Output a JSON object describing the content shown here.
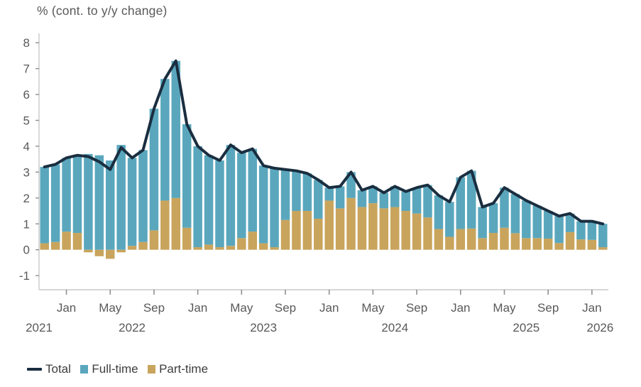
{
  "chart": {
    "title": "% (cont. to y/y change)",
    "colors": {
      "full_time": "#5AA7BD",
      "part_time": "#C9A45C",
      "total_line": "#1A2E40",
      "axis": "#C9C9C9",
      "tick": "#8f8f8f",
      "label_text": "#595959",
      "legend_text": "#3d3d3d",
      "background": "#ffffff"
    },
    "legend": {
      "items": [
        {
          "label": "Total",
          "swatch": "line",
          "name": "legend-total"
        },
        {
          "label": "Full-time",
          "swatch": "box",
          "color_key": "full_time",
          "name": "legend-full-time"
        },
        {
          "label": "Part-time",
          "swatch": "box",
          "color_key": "part_time",
          "name": "legend-part-time"
        }
      ]
    },
    "y_axis": {
      "tick_labels": [
        "8",
        "7",
        "6",
        "5",
        "4",
        "3",
        "2",
        "1",
        "0",
        "-1"
      ],
      "tick_values": [
        8,
        7,
        6,
        5,
        4,
        3,
        2,
        1,
        0,
        -1
      ]
    },
    "x_axis": {
      "month_ticks": [
        {
          "index": 2,
          "label": "Jan"
        },
        {
          "index": 6,
          "label": "May"
        },
        {
          "index": 10,
          "label": "Sep"
        },
        {
          "index": 14,
          "label": "Jan"
        },
        {
          "index": 18,
          "label": "May"
        },
        {
          "index": 22,
          "label": "Sep"
        },
        {
          "index": 26,
          "label": "Jan"
        },
        {
          "index": 30,
          "label": "May"
        },
        {
          "index": 34,
          "label": "Sep"
        },
        {
          "index": 38,
          "label": "Jan"
        },
        {
          "index": 42,
          "label": "May"
        },
        {
          "index": 46,
          "label": "Sep"
        },
        {
          "index": 50,
          "label": "Jan"
        }
      ],
      "year_labels": [
        {
          "label": "2021",
          "jan_index": -1
        },
        {
          "label": "2022",
          "jan_index": 2
        },
        {
          "label": "2023",
          "jan_index": 14
        },
        {
          "label": "2024",
          "jan_index": 26
        },
        {
          "label": "2025",
          "jan_index": 38
        },
        {
          "label": "2026",
          "jan_index": 50
        }
      ]
    }
  },
  "chart_data": {
    "type": "bar",
    "subtype": "stacked-bars-with-total-line",
    "title": "% (cont. to y/y change)",
    "ylabel": "% (cont. to y/y change)",
    "xlabel": "",
    "ylim": [
      -1,
      8
    ],
    "grid": false,
    "legend_position": "bottom-left",
    "x": [
      "Nov 2021",
      "Dec 2021",
      "Jan 2022",
      "Feb 2022",
      "Mar 2022",
      "Apr 2022",
      "May 2022",
      "Jun 2022",
      "Jul 2022",
      "Aug 2022",
      "Sep 2022",
      "Oct 2022",
      "Nov 2022",
      "Dec 2022",
      "Jan 2023",
      "Feb 2023",
      "Mar 2023",
      "Apr 2023",
      "May 2023",
      "Jun 2023",
      "Jul 2023",
      "Aug 2023",
      "Sep 2023",
      "Oct 2023",
      "Nov 2023",
      "Dec 2023",
      "Jan 2024",
      "Feb 2024",
      "Mar 2024",
      "Apr 2024",
      "May 2024",
      "Jun 2024",
      "Jul 2024",
      "Aug 2024",
      "Sep 2024",
      "Oct 2024",
      "Nov 2024",
      "Dec 2024",
      "Jan 2025",
      "Feb 2025",
      "Mar 2025",
      "Apr 2025",
      "May 2025",
      "Jun 2025",
      "Jul 2025",
      "Aug 2025",
      "Sep 2025",
      "Oct 2025",
      "Nov 2025",
      "Dec 2025",
      "Jan 2026",
      "Feb 2026"
    ],
    "series": [
      {
        "name": "Total",
        "type": "line",
        "values": [
          3.2,
          3.3,
          3.55,
          3.65,
          3.6,
          3.4,
          3.1,
          3.95,
          3.55,
          3.85,
          5.45,
          6.6,
          7.3,
          4.85,
          4.0,
          3.65,
          3.45,
          4.05,
          3.75,
          3.9,
          3.25,
          3.15,
          3.1,
          3.05,
          2.95,
          2.7,
          2.4,
          2.45,
          3.0,
          2.3,
          2.45,
          2.2,
          2.45,
          2.25,
          2.4,
          2.5,
          2.1,
          1.85,
          2.8,
          3.05,
          1.65,
          1.8,
          2.4,
          2.15,
          1.9,
          1.7,
          1.5,
          1.3,
          1.4,
          1.1,
          1.1,
          1.0
        ]
      },
      {
        "name": "Full-time",
        "type": "bar",
        "values": [
          2.95,
          3.0,
          2.85,
          3.0,
          3.7,
          3.65,
          3.45,
          4.05,
          3.4,
          3.55,
          4.7,
          4.7,
          5.3,
          4.0,
          3.9,
          3.45,
          3.35,
          3.9,
          3.3,
          3.2,
          3.0,
          3.05,
          1.95,
          1.55,
          1.45,
          1.5,
          0.5,
          0.85,
          1.0,
          0.65,
          0.65,
          0.6,
          0.8,
          0.75,
          1.0,
          1.25,
          1.3,
          1.35,
          2.0,
          2.23,
          1.2,
          1.15,
          1.55,
          1.51,
          1.45,
          1.25,
          1.07,
          1.04,
          0.72,
          0.7,
          0.72,
          0.9
        ]
      },
      {
        "name": "Part-time",
        "type": "bar",
        "values": [
          0.25,
          0.3,
          0.7,
          0.65,
          -0.1,
          -0.25,
          -0.35,
          -0.1,
          0.15,
          0.3,
          0.75,
          1.9,
          2.0,
          0.85,
          0.1,
          0.2,
          0.1,
          0.15,
          0.45,
          0.7,
          0.25,
          0.1,
          1.15,
          1.5,
          1.5,
          1.2,
          1.9,
          1.6,
          2.0,
          1.65,
          1.8,
          1.6,
          1.65,
          1.5,
          1.4,
          1.25,
          0.8,
          0.5,
          0.8,
          0.82,
          0.45,
          0.65,
          0.85,
          0.64,
          0.45,
          0.45,
          0.43,
          0.26,
          0.68,
          0.4,
          0.38,
          0.1
        ]
      }
    ]
  }
}
